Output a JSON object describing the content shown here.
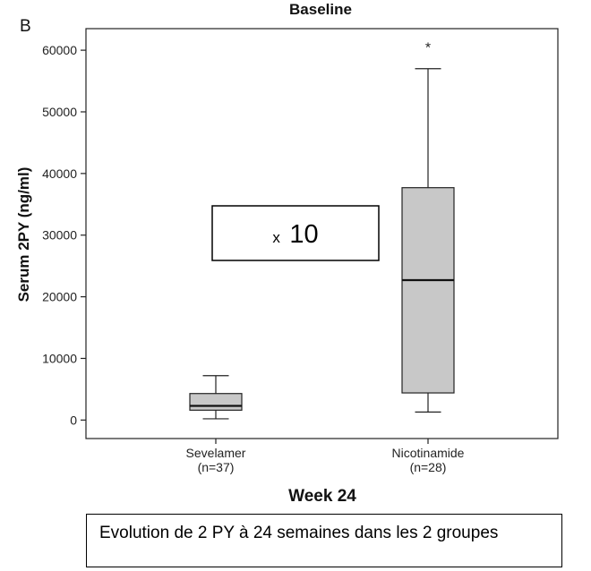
{
  "top_label": "Baseline",
  "panel_letter": "B",
  "annotation": {
    "prefix": "x",
    "value": "10"
  },
  "caption": "Evolution de 2 PY à 24 semaines dans les 2 groupes",
  "chart_data": {
    "type": "boxplot",
    "xlabel": "Week 24",
    "ylabel": "Serum 2PY (ng/ml)",
    "ylim": [
      -3000,
      63500
    ],
    "yticks": [
      0,
      10000,
      20000,
      30000,
      40000,
      50000,
      60000
    ],
    "grid": false,
    "categories": [
      {
        "name": "Sevelamer",
        "n_label": "(n=37)"
      },
      {
        "name": "Nicotinamide",
        "n_label": "(n=28)"
      }
    ],
    "boxes": [
      {
        "whisker_low": 200,
        "q1": 1600,
        "median": 2300,
        "q3": 4300,
        "whisker_high": 7200,
        "outliers": []
      },
      {
        "whisker_low": 1300,
        "q1": 4400,
        "median": 22700,
        "q3": 37700,
        "whisker_high": 57000,
        "outliers": []
      }
    ],
    "markers": [
      {
        "category_index": 1,
        "symbol": "*",
        "y": 60500
      }
    ],
    "colors": {
      "box_fill": "#c8c8c8",
      "stroke": "#222222"
    }
  }
}
